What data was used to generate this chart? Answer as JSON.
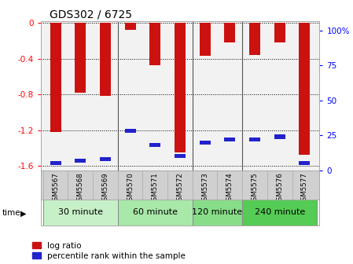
{
  "title": "GDS302 / 6725",
  "samples": [
    "GSM5567",
    "GSM5568",
    "GSM5569",
    "GSM5570",
    "GSM5571",
    "GSM5572",
    "GSM5573",
    "GSM5574",
    "GSM5575",
    "GSM5576",
    "GSM5577"
  ],
  "log_ratio": [
    -1.22,
    -0.78,
    -0.82,
    -0.08,
    -0.47,
    -1.45,
    -0.37,
    -0.22,
    -0.36,
    -0.22,
    -1.48
  ],
  "percentile": [
    5,
    7,
    8,
    28,
    18,
    10,
    20,
    22,
    22,
    24,
    5
  ],
  "groups": [
    {
      "label": "30 minute",
      "start": 0,
      "end": 3,
      "color": "#c8f0c8"
    },
    {
      "label": "60 minute",
      "start": 3,
      "end": 6,
      "color": "#a8e8a8"
    },
    {
      "label": "120 minute",
      "start": 6,
      "end": 8,
      "color": "#88dd88"
    },
    {
      "label": "240 minute",
      "start": 8,
      "end": 11,
      "color": "#55cc55"
    }
  ],
  "bar_color": "#cc1111",
  "percentile_color": "#2222cc",
  "ylim": [
    -1.65,
    0.02
  ],
  "ylim_right": [
    0,
    106.6
  ],
  "yticks_left": [
    0,
    -0.4,
    -0.8,
    -1.2,
    -1.6
  ],
  "ytick_labels_left": [
    "0",
    "-0.4",
    "-0.8",
    "-1.2",
    "-1.6"
  ],
  "yticks_right": [
    0,
    25,
    50,
    75,
    100
  ],
  "ytick_labels_right": [
    "0",
    "25",
    "50",
    "75",
    "100%"
  ],
  "bar_width": 0.45,
  "legend_items": [
    "log ratio",
    "percentile rank within the sample"
  ],
  "time_label": "time"
}
